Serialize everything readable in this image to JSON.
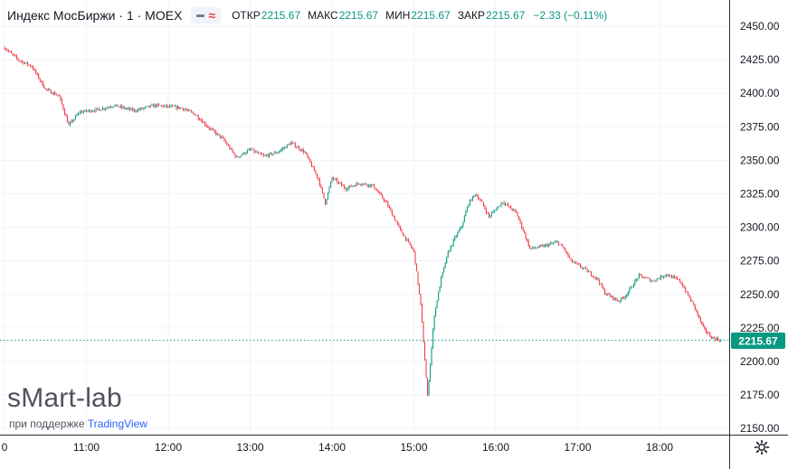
{
  "header": {
    "title": "Индекс МосБиржи · 1 · MOEX",
    "ohlc": [
      {
        "label": "ОТКР",
        "value": "2215.67"
      },
      {
        "label": "МАКС",
        "value": "2215.67"
      },
      {
        "label": "МИН",
        "value": "2215.67"
      },
      {
        "label": "ЗАКР",
        "value": "2215.67"
      },
      {
        "label": "",
        "value": "−2.33 (−0.11%)"
      }
    ]
  },
  "watermark": {
    "brand": "sMart-lab",
    "support_prefix": "при поддержке",
    "support_brand": "TradingView"
  },
  "colors": {
    "up": "#089981",
    "down": "#f23645",
    "grid": "#f0f3fa",
    "price_tag": "#089981"
  },
  "chart_data": {
    "type": "candlestick",
    "title": "Индекс МосБиржи · 1 · MOEX",
    "interval": "1 minute",
    "x_tick_labels": [
      "0",
      "11:00",
      "12:00",
      "13:00",
      "14:00",
      "15:00",
      "16:00",
      "17:00",
      "18:00"
    ],
    "y_tick_labels": [
      "2450.00",
      "2425.00",
      "2400.00",
      "2375.00",
      "2350.00",
      "2325.00",
      "2300.00",
      "2275.00",
      "2250.00",
      "2225.00",
      "2200.00",
      "2175.00",
      "2150.00"
    ],
    "ylim": [
      2145,
      2460
    ],
    "last_price": "2215.67",
    "grid": true,
    "series_points": [
      [
        "10:00",
        2434
      ],
      [
        "10:10",
        2425
      ],
      [
        "10:20",
        2420
      ],
      [
        "10:30",
        2403
      ],
      [
        "10:40",
        2398
      ],
      [
        "10:47",
        2376
      ],
      [
        "10:55",
        2386
      ],
      [
        "11:10",
        2388
      ],
      [
        "11:20",
        2391
      ],
      [
        "11:35",
        2387
      ],
      [
        "11:50",
        2391
      ],
      [
        "12:10",
        2389
      ],
      [
        "12:20",
        2384
      ],
      [
        "12:30",
        2374
      ],
      [
        "12:40",
        2366
      ],
      [
        "12:50",
        2352
      ],
      [
        "13:00",
        2358
      ],
      [
        "13:10",
        2353
      ],
      [
        "13:20",
        2356
      ],
      [
        "13:30",
        2363
      ],
      [
        "13:40",
        2356
      ],
      [
        "13:50",
        2336
      ],
      [
        "13:55",
        2318
      ],
      [
        "14:00",
        2337
      ],
      [
        "14:10",
        2329
      ],
      [
        "14:20",
        2333
      ],
      [
        "14:30",
        2331
      ],
      [
        "14:40",
        2318
      ],
      [
        "14:50",
        2298
      ],
      [
        "15:00",
        2282
      ],
      [
        "15:05",
        2242
      ],
      [
        "15:10",
        2174
      ],
      [
        "15:15",
        2235
      ],
      [
        "15:20",
        2262
      ],
      [
        "15:25",
        2281
      ],
      [
        "15:30",
        2292
      ],
      [
        "15:35",
        2301
      ],
      [
        "15:40",
        2318
      ],
      [
        "15:45",
        2325
      ],
      [
        "15:50",
        2318
      ],
      [
        "15:55",
        2308
      ],
      [
        "16:05",
        2319
      ],
      [
        "16:15",
        2311
      ],
      [
        "16:20",
        2298
      ],
      [
        "16:25",
        2284
      ],
      [
        "16:35",
        2286
      ],
      [
        "16:45",
        2289
      ],
      [
        "16:50",
        2284
      ],
      [
        "16:55",
        2275
      ],
      [
        "17:05",
        2269
      ],
      [
        "17:15",
        2261
      ],
      [
        "17:20",
        2251
      ],
      [
        "17:30",
        2245
      ],
      [
        "17:35",
        2249
      ],
      [
        "17:45",
        2264
      ],
      [
        "17:55",
        2260
      ],
      [
        "18:05",
        2265
      ],
      [
        "18:15",
        2260
      ],
      [
        "18:25",
        2242
      ],
      [
        "18:32",
        2225
      ],
      [
        "18:38",
        2218
      ],
      [
        "18:45",
        2215.67
      ]
    ]
  }
}
